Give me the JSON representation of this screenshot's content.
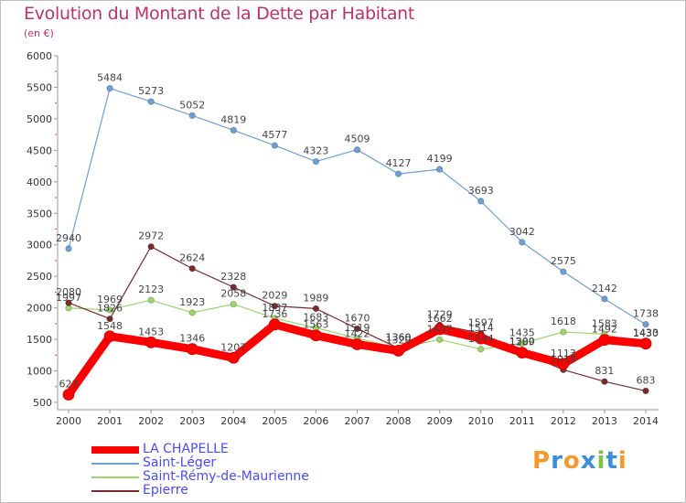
{
  "title": "Evolution du Montant de la Dette par Habitant",
  "subtitle": "(en €)",
  "logo_text": "Proxiti",
  "chart_data": {
    "type": "line",
    "title": "Evolution du Montant de la Dette par Habitant",
    "subtitle": "(en €)",
    "x": [
      "2000",
      "2001",
      "2002",
      "2003",
      "2004",
      "2005",
      "2006",
      "2007",
      "2008",
      "2009",
      "2010",
      "2011",
      "2012",
      "2013",
      "2014"
    ],
    "ylim": [
      500,
      6000
    ],
    "yticks": [
      500,
      1000,
      1500,
      2000,
      2500,
      3000,
      3500,
      4000,
      4500,
      5000,
      5500,
      6000
    ],
    "grid": false,
    "legend": "bottom-left",
    "series": [
      {
        "name": "LA CHAPELLE",
        "color": "#ff0000",
        "values": [
          623,
          1548,
          1453,
          1346,
          1207,
          1736,
          1563,
          1422,
          1320,
          1662,
          1514,
          1289,
          1113,
          1492,
          1433
        ],
        "labels": [
          "623",
          "1548",
          "1453",
          "1346",
          "1207",
          "1736",
          "1563",
          "1422",
          "1320",
          "1662",
          "1514",
          "1289",
          "1113",
          "1492",
          "1433"
        ]
      },
      {
        "name": "Saint-Léger",
        "color": "#6b9fd6",
        "values": [
          2940,
          5484,
          5273,
          5052,
          4819,
          4577,
          4323,
          4509,
          4127,
          4199,
          3693,
          3042,
          2575,
          2142,
          1738
        ],
        "labels": [
          "2940",
          "5484",
          "5273",
          "5052",
          "4819",
          "4577",
          "4323",
          "4509",
          "4127",
          "4199",
          "3693",
          "3042",
          "2575",
          "2142",
          "1738"
        ]
      },
      {
        "name": "Saint-Rémy-de-Maurienne",
        "color": "#9ad66b",
        "values": [
          1997,
          1969,
          2123,
          1923,
          2058,
          1837,
          1683,
          1519,
          1360,
          1497,
          1344,
          1435,
          1618,
          1583,
          1430
        ],
        "labels": [
          "1997",
          "1969",
          "2123",
          "1923",
          "2058",
          "1837",
          "1683",
          "1519",
          "1360",
          "1497",
          "1344",
          "1435",
          "1618",
          "1583",
          "1430"
        ]
      },
      {
        "name": "Epierre",
        "color": "#7a2a2a",
        "values": [
          2080,
          1826,
          2972,
          2624,
          2328,
          2029,
          1989,
          1670,
          1360,
          1729,
          1597,
          1300,
          1018,
          831,
          683
        ],
        "labels": [
          "2080",
          "1826",
          "2972",
          "2624",
          "2328",
          "2029",
          "1989",
          "1670",
          "1360",
          "1729",
          "1597",
          "1300",
          "1018",
          "831",
          "683"
        ]
      }
    ]
  },
  "colors": {
    "title": "#c0306a",
    "axis": "#999999",
    "tick_text": "#333333",
    "label_text": "#444444",
    "legend_text": "#4a4aff",
    "logo_letters": [
      "#f29a2e",
      "#3b8fd8",
      "#f29a2e",
      "#3b8fd8",
      "#7dc242",
      "#3b8fd8",
      "#f29a2e"
    ]
  }
}
